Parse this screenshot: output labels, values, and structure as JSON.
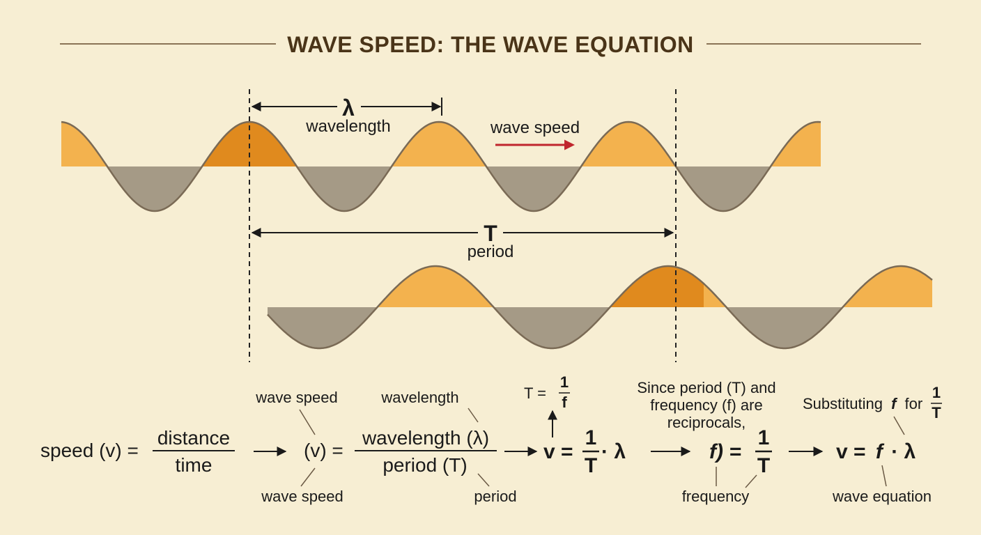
{
  "title": "WAVE SPEED: THE WAVE EQUATION",
  "diagram": {
    "lambda_symbol": "λ",
    "lambda_label": "wavelength",
    "speed_label": "wave speed",
    "period_symbol": "T",
    "period_label": "period"
  },
  "derivation": {
    "step1": {
      "lhs": "speed (v) =",
      "num": "distance",
      "den": "time"
    },
    "step2": {
      "lhs": "(v) =",
      "num": "wavelength (λ)",
      "den": "period (T)",
      "top_note": "wave speed",
      "bottom_note": "wave speed",
      "num_note": "wavelength",
      "den_note": "period"
    },
    "step3": {
      "lhs": "v =",
      "num": "1",
      "den": "T",
      "rhs": "· λ",
      "note_lhs": "T =",
      "note_num": "1",
      "note_den": "f"
    },
    "step4": {
      "note": [
        "Since period (T) and",
        "frequency (f) are",
        "reciprocals,"
      ],
      "lhs": "f) =",
      "num": "1",
      "den": "T",
      "bottom_note": "frequency"
    },
    "step5": {
      "lhs": "v =",
      "f": "f",
      "rhs": "· λ",
      "note_prefix": "Substituting",
      "note_f": "f",
      "note_for": "for",
      "note_num": "1",
      "note_den": "T",
      "bottom_note": "wave equation"
    }
  },
  "colors": {
    "background": "#f7eed3",
    "crest": "#f3b24e",
    "crest_overlap": "#e08a1e",
    "trough": "#a59a86",
    "wave_line": "#7a6a55",
    "speed_arrow": "#c0262d",
    "title": "#4a3418"
  }
}
